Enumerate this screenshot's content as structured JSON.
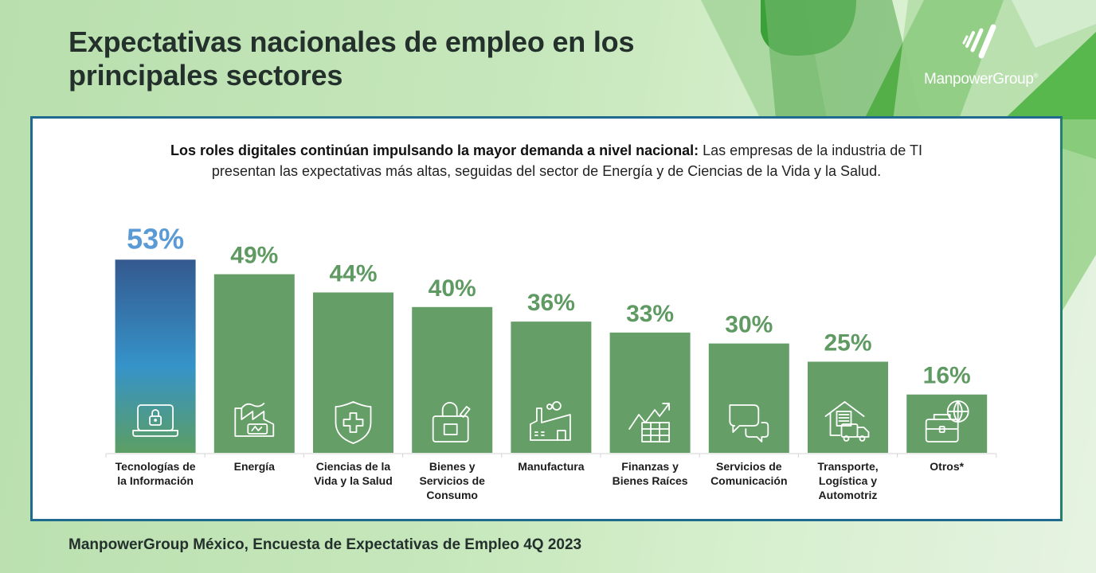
{
  "header": {
    "title_line1": "Expectativas nacionales de empleo en los",
    "title_line2": "principales sectores",
    "logo_text": "ManpowerGroup",
    "logo_mark": "®"
  },
  "subtitle": {
    "bold": "Los roles digitales continúan impulsando la mayor demanda a nivel nacional:",
    "line1_rest": " Las empresas de la industria de TI",
    "line2": "presentan las expectativas más altas, seguidas del sector de Energía y de Ciencias de la Vida y la Salud."
  },
  "footer": {
    "source": "ManpowerGroup México, Encuesta de Expectativas de Empleo 4Q 2023"
  },
  "colors": {
    "highlight_label": "#5b9bd5",
    "highlight_bar_top": "#34598f",
    "highlight_bar_mid": "#3593c9",
    "highlight_bar_bottom": "#5c9e63",
    "bar": "#659e67",
    "value_label": "#5f9a62",
    "border": "#1f6a8e",
    "title": "#24302c"
  },
  "chart_data": {
    "type": "bar",
    "title": "Expectativas nacionales de empleo en los principales sectores",
    "xlabel": "",
    "ylabel": "",
    "ylim": [
      0,
      60
    ],
    "grid": false,
    "legend": "none",
    "value_suffix": "%",
    "categories": [
      "Tecnologías de la Información",
      "Energía",
      "Ciencias de la Vida y la Salud",
      "Bienes y Servicios de Consumo",
      "Manufactura",
      "Finanzas y Bienes Raíces",
      "Servicios de Comunicación",
      "Transporte, Logística y Automotriz",
      "Otros*"
    ],
    "category_lines": [
      [
        "Tecnologías de",
        "la Información"
      ],
      [
        "Energía"
      ],
      [
        "Ciencias de la",
        "Vida y la Salud"
      ],
      [
        "Bienes y",
        "Servicios de",
        "Consumo"
      ],
      [
        "Manufactura"
      ],
      [
        "Finanzas y",
        "Bienes Raíces"
      ],
      [
        "Servicios de",
        "Comunicación"
      ],
      [
        "Transporte,",
        "Logística y",
        "Automotriz"
      ],
      [
        "Otros*"
      ]
    ],
    "values": [
      53,
      49,
      44,
      40,
      36,
      33,
      30,
      25,
      16
    ],
    "highlight_index": 0,
    "icons": [
      "laptop-lock-icon",
      "factory-battery-icon",
      "shield-cross-icon",
      "shopping-bag-icon",
      "factory-icon",
      "chart-table-icon",
      "chat-bubbles-icon",
      "warehouse-truck-icon",
      "briefcase-globe-icon"
    ]
  }
}
